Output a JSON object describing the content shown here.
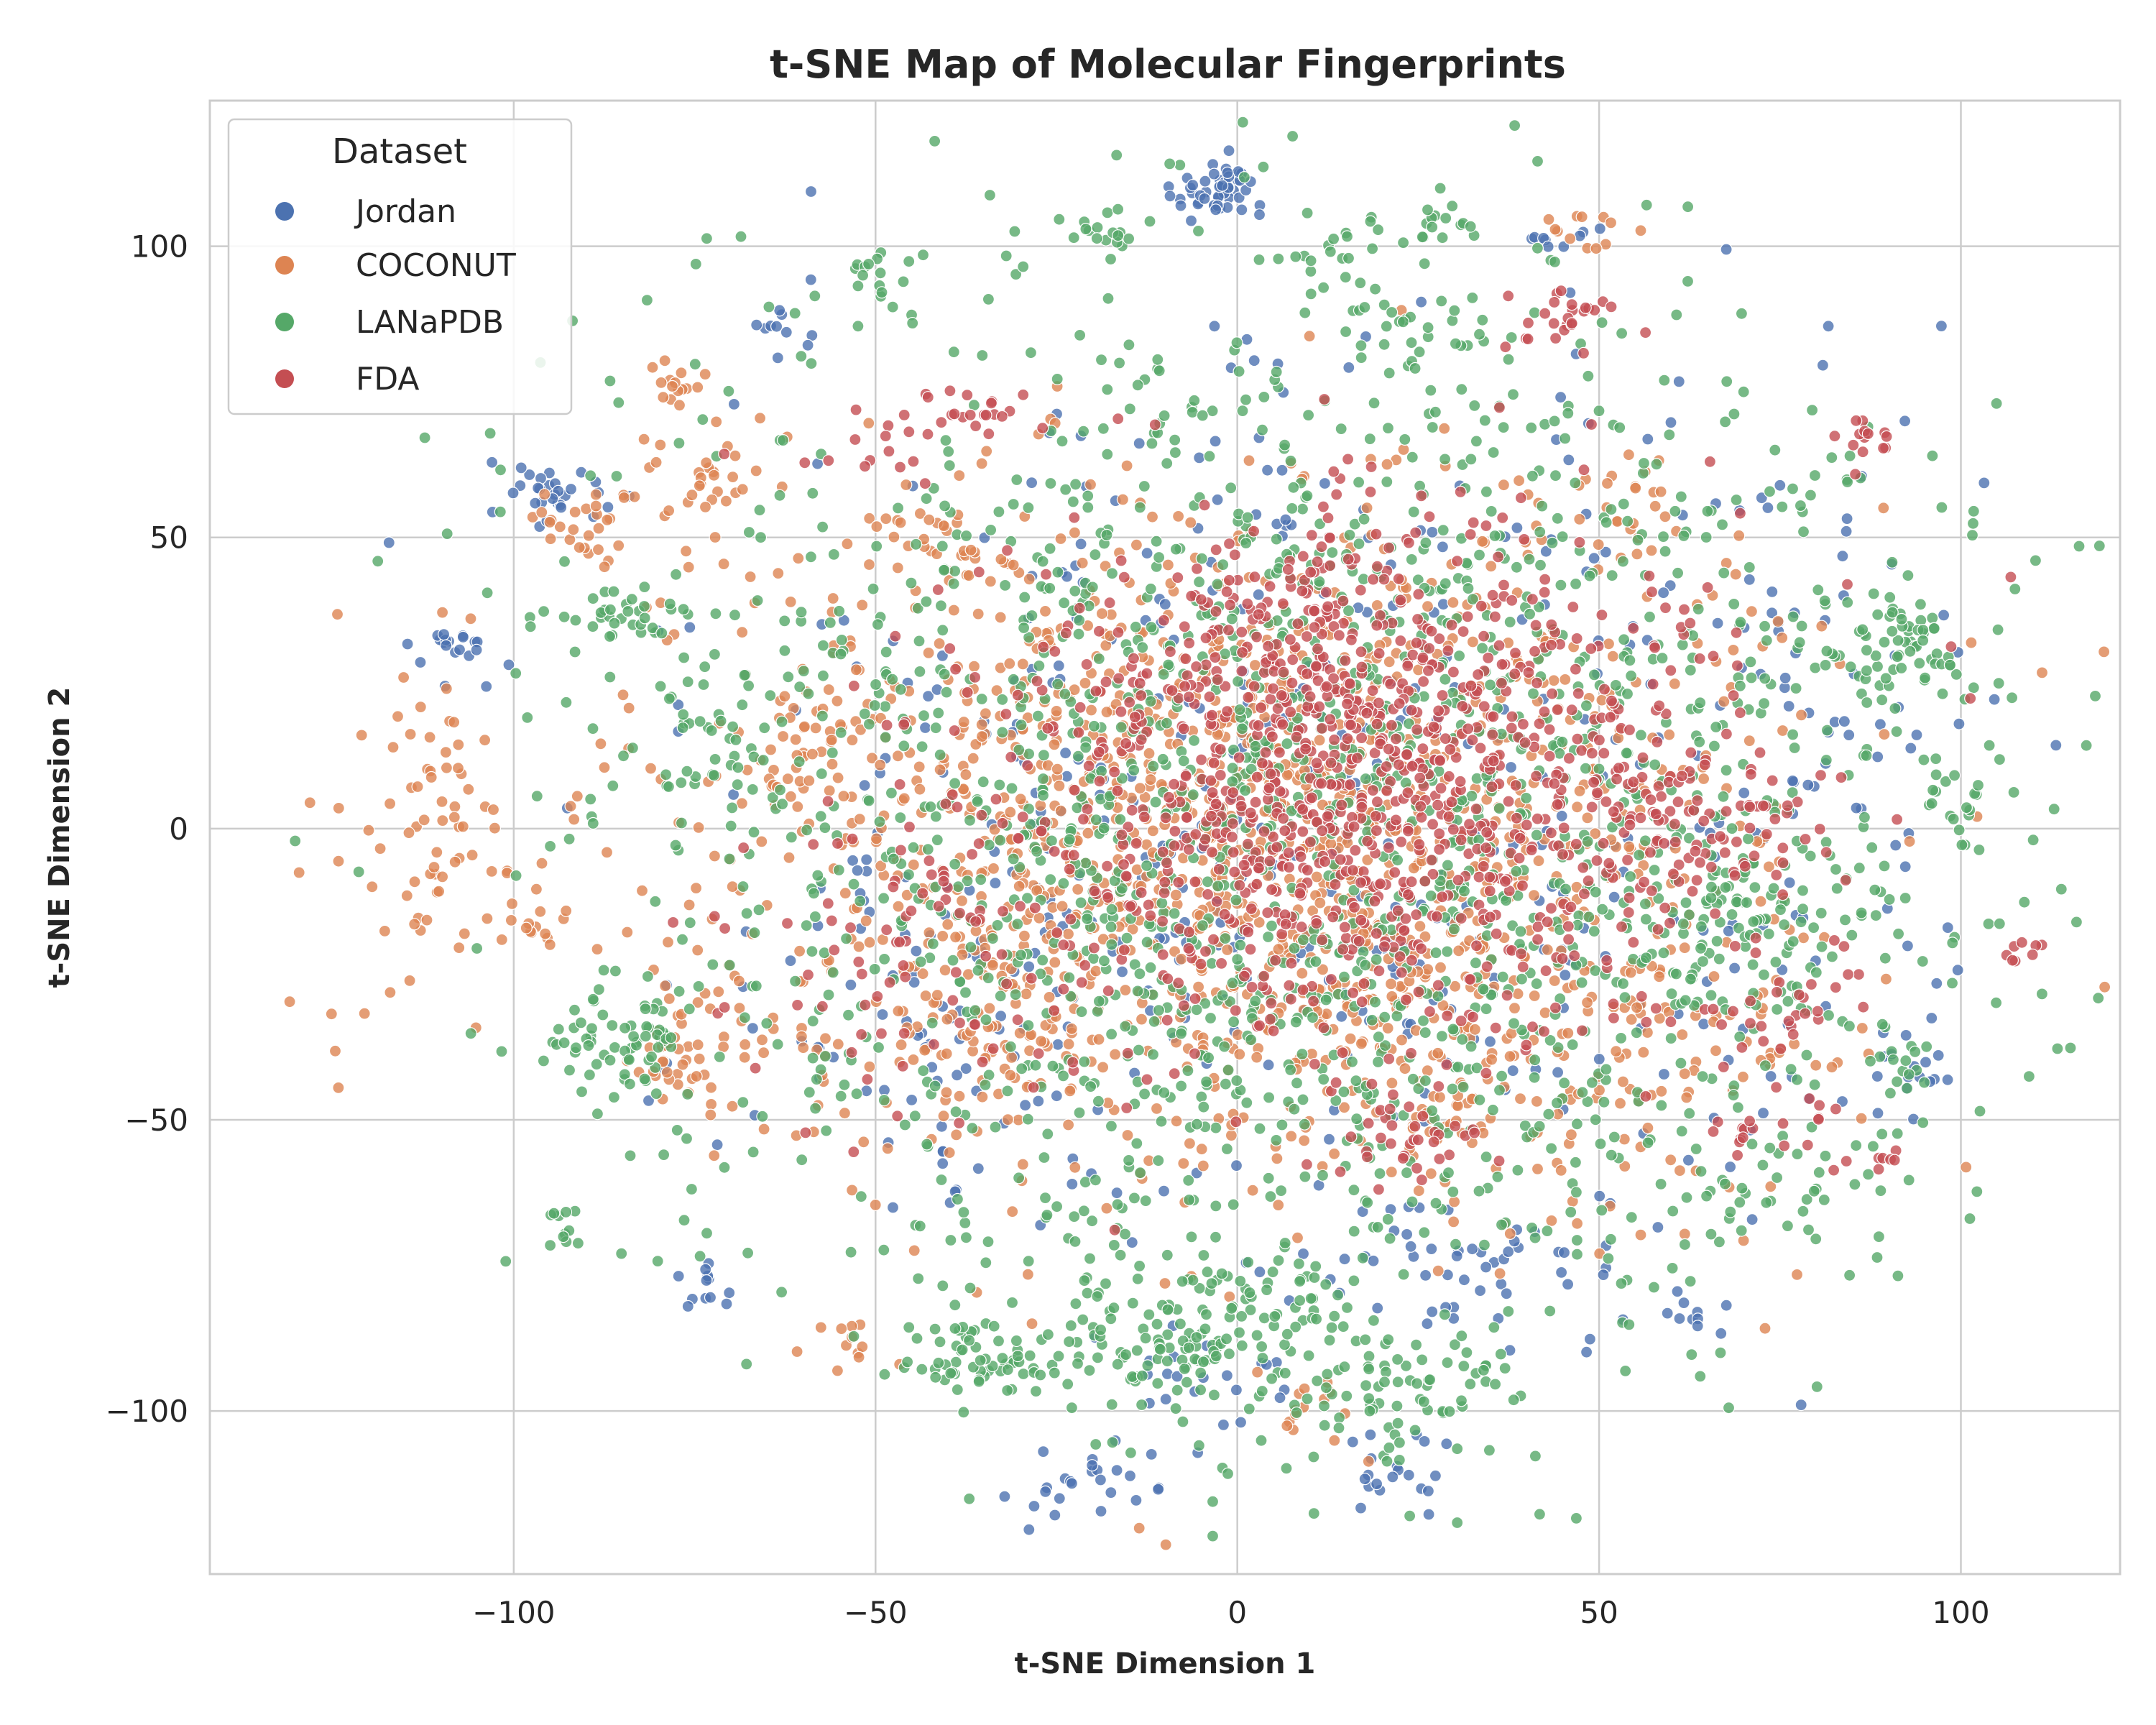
{
  "chart_data": {
    "type": "scatter",
    "title": "t-SNE Map of Molecular Fingerprints",
    "xlabel": "t-SNE Dimension 1",
    "ylabel": "t-SNE Dimension 2",
    "xlim": [
      -142,
      122
    ],
    "ylim": [
      -128,
      125
    ],
    "xticks": [
      -100,
      -50,
      0,
      50,
      100
    ],
    "yticks": [
      -100,
      -50,
      0,
      50,
      100
    ],
    "xtick_labels": [
      "−100",
      "−50",
      "0",
      "50",
      "100"
    ],
    "ytick_labels": [
      "−100",
      "−50",
      "0",
      "50",
      "100"
    ],
    "grid": true,
    "legend": {
      "title": "Dataset",
      "position": "top-left"
    },
    "series": [
      {
        "name": "Jordan",
        "color": "#4c72b0",
        "clusters": [
          {
            "cx": -3,
            "cy": 109,
            "sx": 3,
            "sy": 3,
            "n": 50
          },
          {
            "cx": -95,
            "cy": 57,
            "sx": 5,
            "sy": 3,
            "n": 30
          },
          {
            "cx": -107,
            "cy": 30,
            "sx": 4,
            "sy": 3,
            "n": 20
          },
          {
            "cx": -64,
            "cy": 85,
            "sx": 2,
            "sy": 2,
            "n": 10
          },
          {
            "cx": 45,
            "cy": 101,
            "sx": 2,
            "sy": 1,
            "n": 8
          },
          {
            "cx": -18,
            "cy": -112,
            "sx": 6,
            "sy": 4,
            "n": 25
          },
          {
            "cx": 22,
            "cy": -110,
            "sx": 4,
            "sy": 4,
            "n": 20
          },
          {
            "cx": -73,
            "cy": -80,
            "sx": 3,
            "sy": 2,
            "n": 12
          },
          {
            "cx": -2,
            "cy": -95,
            "sx": 6,
            "sy": 4,
            "n": 20
          },
          {
            "cx": 10,
            "cy": 0,
            "sx": 40,
            "sy": 42,
            "n": 420
          },
          {
            "cx": 72,
            "cy": 20,
            "sx": 20,
            "sy": 35,
            "n": 90
          },
          {
            "cx": 62,
            "cy": -84,
            "sx": 3,
            "sy": 2,
            "n": 10
          },
          {
            "cx": 92,
            "cy": -42,
            "sx": 3,
            "sy": 2,
            "n": 10
          },
          {
            "cx": 35,
            "cy": -75,
            "sx": 10,
            "sy": 6,
            "n": 40
          },
          {
            "cx": -42,
            "cy": -30,
            "sx": 15,
            "sy": 18,
            "n": 70
          }
        ]
      },
      {
        "name": "COCONUT",
        "color": "#dd8452",
        "clusters": [
          {
            "cx": 0,
            "cy": 0,
            "sx": 36,
            "sy": 30,
            "n": 1400
          },
          {
            "cx": -110,
            "cy": 2,
            "sx": 6,
            "sy": 12,
            "n": 60
          },
          {
            "cx": -124,
            "cy": -15,
            "sx": 6,
            "sy": 20,
            "n": 15
          },
          {
            "cx": -77,
            "cy": 77,
            "sx": 2,
            "sy": 2,
            "n": 15
          },
          {
            "cx": -73,
            "cy": 60,
            "sx": 5,
            "sy": 4,
            "n": 30
          },
          {
            "cx": -90,
            "cy": 53,
            "sx": 4,
            "sy": 4,
            "n": 25
          },
          {
            "cx": -76,
            "cy": -40,
            "sx": 4,
            "sy": 5,
            "n": 40
          },
          {
            "cx": -96,
            "cy": -17,
            "sx": 2,
            "sy": 2,
            "n": 12
          },
          {
            "cx": -42,
            "cy": 50,
            "sx": 5,
            "sy": 4,
            "n": 25
          },
          {
            "cx": -58,
            "cy": 15,
            "sx": 5,
            "sy": 8,
            "n": 40
          },
          {
            "cx": 47,
            "cy": 102,
            "sx": 3,
            "sy": 2,
            "n": 12
          },
          {
            "cx": 52,
            "cy": 55,
            "sx": 6,
            "sy": 5,
            "n": 25
          },
          {
            "cx": 28,
            "cy": -48,
            "sx": 5,
            "sy": 3,
            "n": 25
          },
          {
            "cx": 75,
            "cy": -40,
            "sx": 4,
            "sy": 2,
            "n": 12
          },
          {
            "cx": -55,
            "cy": -88,
            "sx": 3,
            "sy": 3,
            "n": 12
          },
          {
            "cx": 10,
            "cy": -100,
            "sx": 6,
            "sy": 4,
            "n": 15
          },
          {
            "cx": -35,
            "cy": -35,
            "sx": 12,
            "sy": 10,
            "n": 80
          },
          {
            "cx": 40,
            "cy": -30,
            "sx": 18,
            "sy": 15,
            "n": 120
          }
        ]
      },
      {
        "name": "LANaPDB",
        "color": "#55a868",
        "clusters": [
          {
            "cx": 10,
            "cy": 0,
            "sx": 48,
            "sy": 48,
            "n": 2100
          },
          {
            "cx": -85,
            "cy": -37,
            "sx": 5,
            "sy": 5,
            "n": 60
          },
          {
            "cx": -35,
            "cy": -90,
            "sx": 6,
            "sy": 3,
            "n": 60
          },
          {
            "cx": -10,
            "cy": -90,
            "sx": 8,
            "sy": 6,
            "n": 80
          },
          {
            "cx": 22,
            "cy": -97,
            "sx": 6,
            "sy": 6,
            "n": 60
          },
          {
            "cx": 7,
            "cy": -82,
            "sx": 6,
            "sy": 4,
            "n": 40
          },
          {
            "cx": 92,
            "cy": 32,
            "sx": 4,
            "sy": 5,
            "n": 50
          },
          {
            "cx": 70,
            "cy": -15,
            "sx": 8,
            "sy": 8,
            "n": 60
          },
          {
            "cx": -84,
            "cy": 37,
            "sx": 5,
            "sy": 2,
            "n": 30
          },
          {
            "cx": -75,
            "cy": 15,
            "sx": 5,
            "sy": 5,
            "n": 30
          },
          {
            "cx": -50,
            "cy": 94,
            "sx": 3,
            "sy": 4,
            "n": 15
          },
          {
            "cx": 22,
            "cy": 85,
            "sx": 5,
            "sy": 4,
            "n": 25
          },
          {
            "cx": 27,
            "cy": 103,
            "sx": 3,
            "sy": 2,
            "n": 15
          },
          {
            "cx": 12,
            "cy": 100,
            "sx": 4,
            "sy": 3,
            "n": 15
          },
          {
            "cx": -17,
            "cy": 103,
            "sx": 3,
            "sy": 2,
            "n": 12
          },
          {
            "cx": 100,
            "cy": 5,
            "sx": 4,
            "sy": 4,
            "n": 20
          },
          {
            "cx": -93,
            "cy": -69,
            "sx": 2,
            "sy": 2,
            "n": 10
          },
          {
            "cx": 70,
            "cy": -65,
            "sx": 4,
            "sy": 4,
            "n": 20
          },
          {
            "cx": 33,
            "cy": -93,
            "sx": 2,
            "sy": 2,
            "n": 10
          },
          {
            "cx": 92,
            "cy": -40,
            "sx": 3,
            "sy": 3,
            "n": 12
          }
        ]
      },
      {
        "name": "FDA",
        "color": "#c44e52",
        "clusters": [
          {
            "cx": 15,
            "cy": 5,
            "sx": 28,
            "sy": 22,
            "n": 1000
          },
          {
            "cx": 10,
            "cy": 32,
            "sx": 10,
            "sy": 12,
            "n": 150
          },
          {
            "cx": 65,
            "cy": 0,
            "sx": 8,
            "sy": 6,
            "n": 60
          },
          {
            "cx": 87,
            "cy": 67,
            "sx": 2,
            "sy": 2,
            "n": 15
          },
          {
            "cx": 108,
            "cy": -21,
            "sx": 2,
            "sy": 1,
            "n": 8
          },
          {
            "cx": 88,
            "cy": -57,
            "sx": 2,
            "sy": 1,
            "n": 8
          },
          {
            "cx": 70,
            "cy": -53,
            "sx": 2,
            "sy": 2,
            "n": 10
          },
          {
            "cx": 80,
            "cy": -50,
            "sx": 2,
            "sy": 2,
            "n": 8
          },
          {
            "cx": 45,
            "cy": 88,
            "sx": 5,
            "sy": 3,
            "n": 25
          },
          {
            "cx": -35,
            "cy": 72,
            "sx": 5,
            "sy": 2,
            "n": 20
          },
          {
            "cx": 25,
            "cy": -55,
            "sx": 6,
            "sy": 4,
            "n": 30
          },
          {
            "cx": -50,
            "cy": 65,
            "sx": 4,
            "sy": 3,
            "n": 15
          },
          {
            "cx": -45,
            "cy": -25,
            "sx": 10,
            "sy": 12,
            "n": 60
          },
          {
            "cx": 75,
            "cy": -30,
            "sx": 5,
            "sy": 5,
            "n": 25
          }
        ]
      }
    ]
  }
}
